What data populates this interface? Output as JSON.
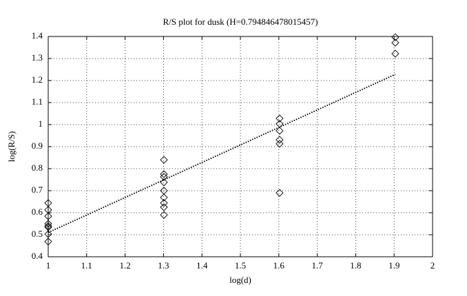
{
  "chart_data": {
    "type": "scatter",
    "title": "R/S plot for dusk (H=0.794846478015457)",
    "x_label": "log(d)",
    "y_label": "log(R/S)",
    "xlim": [
      1,
      2
    ],
    "xticks": [
      1,
      1.1,
      1.2,
      1.3,
      1.4,
      1.5,
      1.6,
      1.7,
      1.8,
      1.9,
      2
    ],
    "ylim": [
      0.4,
      1.4
    ],
    "yticks": [
      0.4,
      0.5,
      0.6,
      0.7,
      0.8,
      0.9,
      1,
      1.1,
      1.2,
      1.3,
      1.4
    ],
    "grid": true,
    "series": [
      {
        "color": "#000000",
        "marker": "diamond",
        "x": [
          1,
          1,
          1,
          1,
          1,
          1,
          1,
          1,
          1.301,
          1.301,
          1.301,
          1.301,
          1.301,
          1.301,
          1.301,
          1.301,
          1.301,
          1.602,
          1.602,
          1.602,
          1.602,
          1.602,
          1.602,
          1.903,
          1.903,
          1.903
        ],
        "values": [
          0.644,
          0.613,
          0.584,
          0.55,
          0.54,
          0.534,
          0.503,
          0.469,
          0.84,
          0.775,
          0.763,
          0.738,
          0.7,
          0.669,
          0.644,
          0.625,
          0.59,
          1.028,
          1.003,
          0.972,
          0.931,
          0.913,
          0.69,
          1.397,
          1.372,
          1.322
        ]
      },
      {
        "color": "#000000",
        "line": "dotted",
        "x": [
          1,
          1.903
        ],
        "values": [
          0.51,
          1.228
        ]
      }
    ]
  }
}
